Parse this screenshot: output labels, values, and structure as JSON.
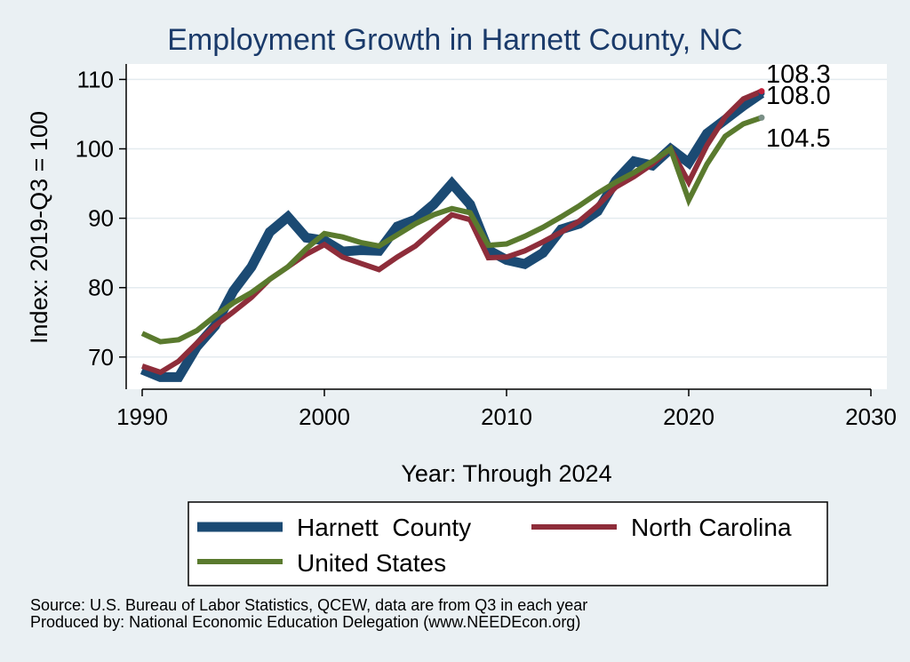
{
  "chart_data": {
    "type": "line",
    "title": "Employment Growth in Harnett County, NC",
    "xlabel": "Year: Through 2024",
    "ylabel": "Index: 2019-Q3 = 100",
    "xlim": [
      1990,
      2030
    ],
    "ylim": [
      65,
      112
    ],
    "xticks": [
      1990,
      2000,
      2010,
      2020,
      2030
    ],
    "yticks": [
      70,
      80,
      90,
      100,
      110
    ],
    "grid": true,
    "legend_position": "bottom",
    "x": [
      1990,
      1991,
      1992,
      1993,
      1994,
      1995,
      1996,
      1997,
      1998,
      1999,
      2000,
      2001,
      2002,
      2003,
      2004,
      2005,
      2006,
      2007,
      2008,
      2009,
      2010,
      2011,
      2012,
      2013,
      2014,
      2015,
      2016,
      2017,
      2018,
      2019,
      2020,
      2021,
      2022,
      2023,
      2024
    ],
    "series": [
      {
        "name": "Harnett  County",
        "color": "#1b4a73",
        "width": 11,
        "values": [
          68.2,
          67.1,
          67.1,
          71.5,
          74.5,
          79.5,
          83.0,
          88.0,
          90.2,
          87.2,
          86.8,
          85.2,
          85.4,
          85.3,
          88.8,
          89.8,
          92.0,
          95.0,
          92.0,
          85.4,
          84.0,
          83.4,
          85.0,
          88.4,
          89.2,
          91.0,
          95.4,
          98.2,
          97.6,
          100.0,
          98.0,
          102.2,
          104.2,
          106.2,
          108.0
        ]
      },
      {
        "name": "North Carolina",
        "color": "#8e2d3a",
        "width": 6,
        "values": [
          68.7,
          67.8,
          69.4,
          72.0,
          74.5,
          76.5,
          78.6,
          81.2,
          83.0,
          84.8,
          86.2,
          84.4,
          83.5,
          82.6,
          84.4,
          86.0,
          88.3,
          90.5,
          89.8,
          84.3,
          84.4,
          85.3,
          86.6,
          88.0,
          89.6,
          91.8,
          94.5,
          96.0,
          97.8,
          100.0,
          95.2,
          100.5,
          104.6,
          107.2,
          108.3
        ]
      },
      {
        "name": "United States",
        "color": "#5a7a2e",
        "width": 6,
        "values": [
          73.4,
          72.2,
          72.5,
          73.8,
          75.9,
          77.8,
          79.3,
          81.2,
          83.0,
          85.6,
          87.8,
          87.3,
          86.5,
          86.0,
          87.6,
          89.2,
          90.5,
          91.4,
          90.8,
          86.1,
          86.3,
          87.4,
          88.7,
          90.2,
          91.8,
          93.6,
          95.2,
          96.6,
          98.2,
          100.0,
          92.6,
          97.8,
          101.8,
          103.6,
          104.5
        ]
      }
    ],
    "end_labels": [
      "108.3",
      "108.0",
      "104.5"
    ],
    "source_lines": [
      "Source: U.S. Bureau of Labor Statistics, QCEW, data are from Q3 in each year",
      "Produced by: National Economic Education Delegation (www.NEEDEcon.org)"
    ]
  }
}
